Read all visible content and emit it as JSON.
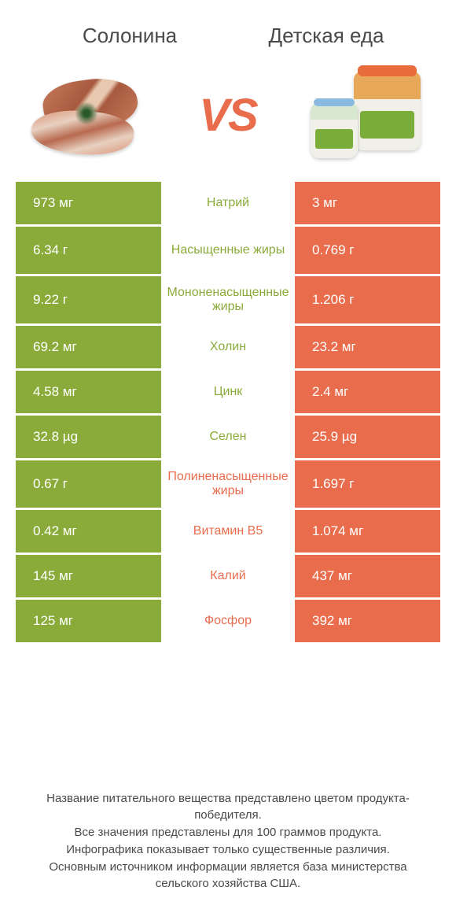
{
  "colors": {
    "green": "#8aab3a",
    "orange": "#e96c4c",
    "text": "#4a4a4a",
    "white": "#ffffff"
  },
  "header": {
    "left_title": "Солонина",
    "right_title": "Детская еда",
    "vs": "VS"
  },
  "table": {
    "rows": [
      {
        "nutrient": "Натрий",
        "left": "973 мг",
        "right": "3 мг",
        "winner": "left"
      },
      {
        "nutrient": "Насыщенные жиры",
        "left": "6.34 г",
        "right": "0.769 г",
        "winner": "left",
        "tall": true
      },
      {
        "nutrient": "Мононенасыщенные жиры",
        "left": "9.22 г",
        "right": "1.206 г",
        "winner": "left",
        "tall": true
      },
      {
        "nutrient": "Холин",
        "left": "69.2 мг",
        "right": "23.2 мг",
        "winner": "left"
      },
      {
        "nutrient": "Цинк",
        "left": "4.58 мг",
        "right": "2.4 мг",
        "winner": "left"
      },
      {
        "nutrient": "Селен",
        "left": "32.8 µg",
        "right": "25.9 µg",
        "winner": "left"
      },
      {
        "nutrient": "Полиненасыщенные жиры",
        "left": "0.67 г",
        "right": "1.697 г",
        "winner": "right",
        "tall": true
      },
      {
        "nutrient": "Витамин B5",
        "left": "0.42 мг",
        "right": "1.074 мг",
        "winner": "right"
      },
      {
        "nutrient": "Калий",
        "left": "145 мг",
        "right": "437 мг",
        "winner": "right"
      },
      {
        "nutrient": "Фосфор",
        "left": "125 мг",
        "right": "392 мг",
        "winner": "right"
      }
    ]
  },
  "footer": {
    "line1": "Название питательного вещества представлено цветом продукта-победителя.",
    "line2": "Все значения представлены для 100 граммов продукта.",
    "line3": "Инфографика показывает только существенные различия.",
    "line4": "Основным источником информации является база министерства сельского хозяйства США."
  }
}
